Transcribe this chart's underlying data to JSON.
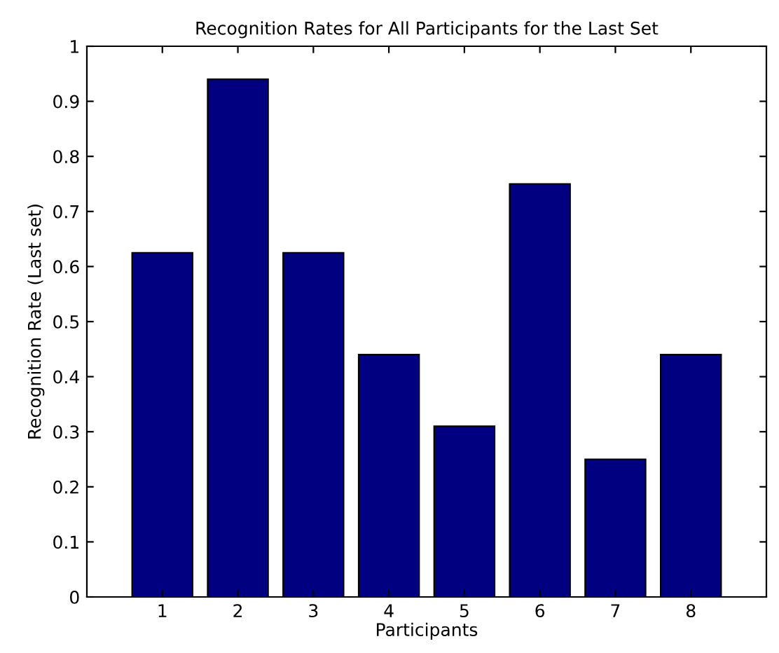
{
  "chart_data": {
    "type": "bar",
    "title": "Recognition Rates for All Participants for the Last Set",
    "xlabel": "Participants",
    "ylabel": "Recognition Rate (Last set)",
    "categories": [
      "1",
      "2",
      "3",
      "4",
      "5",
      "6",
      "7",
      "8"
    ],
    "values": [
      0.625,
      0.94,
      0.625,
      0.44,
      0.31,
      0.75,
      0.25,
      0.44
    ],
    "color": "#000080",
    "ylim": [
      0,
      1
    ],
    "yticks": [
      0,
      0.1,
      0.2,
      0.3,
      0.4,
      0.5,
      0.6,
      0.7,
      0.8,
      0.9,
      1
    ],
    "grid": false,
    "legend": false
  }
}
